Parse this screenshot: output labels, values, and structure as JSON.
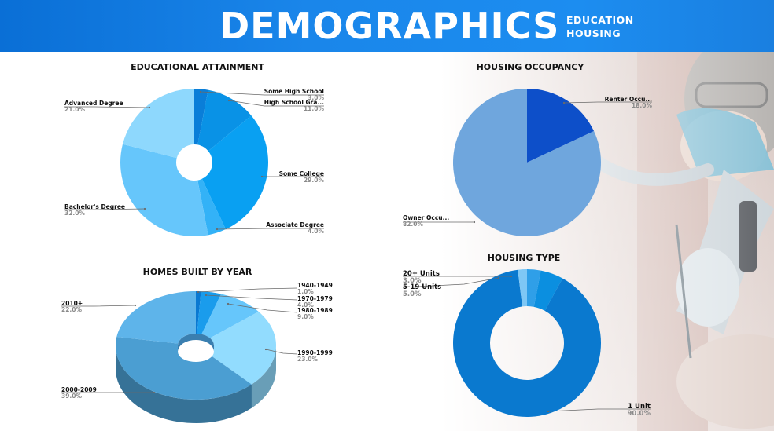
{
  "header": {
    "title": "DEMOGRAPHICS",
    "subtitle_lines": [
      "EDUCATION",
      "HOUSING"
    ]
  },
  "colors": {
    "header_bg": "#1580e6",
    "label_text": "#111111",
    "pct_text": "#8a8a8a",
    "leader_line": "#6a6a6a"
  },
  "chart_data": [
    {
      "type": "pie",
      "variant": "donut",
      "title": "EDUCATIONAL ATTAINMENT",
      "categories": [
        "Some High School",
        "High School Gra...",
        "Some College",
        "Associate Degree",
        "Bachelor's Degree",
        "Advanced Degree"
      ],
      "values": [
        3.0,
        11.0,
        29.0,
        4.0,
        32.0,
        21.0
      ],
      "value_labels": [
        "3.0%",
        "11.0%",
        "29.0%",
        "4.0%",
        "32.0%",
        "21.0%"
      ],
      "colors": [
        "#0a7ed8",
        "#0992e6",
        "#09a0f2",
        "#33b2f7",
        "#66c6fb",
        "#8ed8fd"
      ]
    },
    {
      "type": "pie",
      "title": "HOUSING OCCUPANCY",
      "categories": [
        "Renter Occu...",
        "Owner Occu..."
      ],
      "values": [
        18.0,
        82.0
      ],
      "value_labels": [
        "18.0%",
        "82.0%"
      ],
      "colors": [
        "#0d4fc9",
        "#6fa6dd"
      ]
    },
    {
      "type": "pie",
      "variant": "3d-donut",
      "title": "HOMES BUILT BY YEAR",
      "categories": [
        "1940-1949",
        "1970-1979",
        "1980-1989",
        "1990-1999",
        "2000-2009",
        "2010+"
      ],
      "values": [
        1.0,
        4.0,
        9.0,
        23.0,
        39.0,
        22.0
      ],
      "value_labels": [
        "1.0%",
        "4.0%",
        "9.0%",
        "23.0%",
        "39.0%",
        "22.0%"
      ],
      "colors": [
        "#0a79d2",
        "#1a9cec",
        "#66c6fb",
        "#92dcfe",
        "#4b9ed2",
        "#5eb4ea"
      ]
    },
    {
      "type": "pie",
      "variant": "donut",
      "title": "HOUSING TYPE",
      "categories": [
        "20+ Units",
        "5-19 Units",
        "1 Unit"
      ],
      "values": [
        3.0,
        5.0,
        90.0
      ],
      "value_labels": [
        "3.0%",
        "5.0%",
        "90.0%"
      ],
      "remainder_value": 2.0,
      "colors": [
        "#2f9fe8",
        "#0b8fe0",
        "#0a79cf"
      ],
      "remainder_color": "#7ec7f5"
    }
  ]
}
